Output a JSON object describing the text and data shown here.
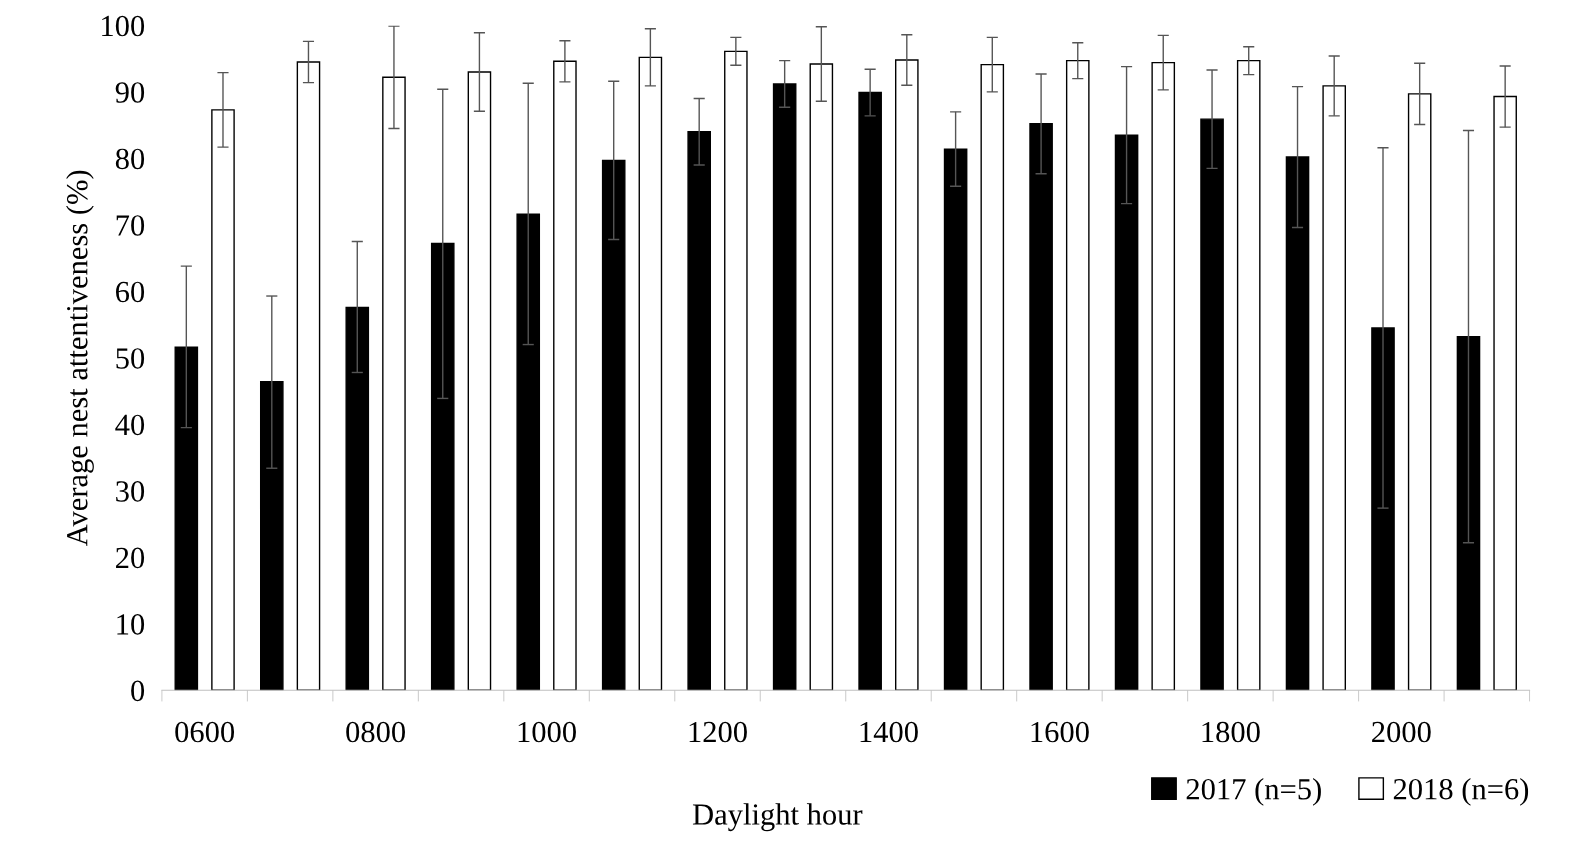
{
  "chart_data": {
    "type": "bar",
    "xlabel": "Daylight hour",
    "ylabel": "Average nest attentiveness (%)",
    "categories": [
      "0600",
      null,
      "0800",
      null,
      "1000",
      null,
      "1200",
      null,
      "1400",
      null,
      "1600",
      null,
      "1800",
      null,
      "2000",
      null
    ],
    "series": [
      {
        "name": "2017 (n=5)",
        "color": "#000000",
        "values": [
          51.6,
          46.4,
          57.6,
          67.2,
          71.6,
          79.7,
          84.0,
          91.2,
          89.9,
          81.4,
          85.2,
          83.5,
          85.9,
          80.2,
          54.5,
          53.2
        ],
        "errors": [
          [
            39.5,
            63.8
          ],
          [
            33.4,
            59.3
          ],
          [
            47.8,
            67.5
          ],
          [
            43.9,
            90.4
          ],
          [
            52.0,
            91.3
          ],
          [
            67.8,
            91.6
          ],
          [
            79.0,
            89.0
          ],
          [
            87.7,
            94.7
          ],
          [
            86.4,
            93.4
          ],
          [
            75.8,
            87.0
          ],
          [
            77.7,
            92.7
          ],
          [
            73.2,
            93.8
          ],
          [
            78.5,
            93.3
          ],
          [
            69.6,
            90.8
          ],
          [
            27.4,
            81.6
          ],
          [
            22.2,
            84.2
          ]
        ]
      },
      {
        "name": "2018 (n=6)",
        "color": "#ffffff",
        "values": [
          87.3,
          94.5,
          92.2,
          93.0,
          94.6,
          95.2,
          96.1,
          94.2,
          94.8,
          94.1,
          94.7,
          94.4,
          94.7,
          90.9,
          89.7,
          89.3
        ],
        "errors": [
          [
            81.7,
            92.9
          ],
          [
            91.4,
            97.6
          ],
          [
            84.5,
            99.9
          ],
          [
            87.1,
            98.9
          ],
          [
            91.5,
            97.7
          ],
          [
            90.9,
            99.5
          ],
          [
            94.0,
            98.2
          ],
          [
            88.6,
            99.8
          ],
          [
            91.0,
            98.6
          ],
          [
            90.0,
            98.2
          ],
          [
            92.0,
            97.4
          ],
          [
            90.3,
            98.5
          ],
          [
            92.6,
            96.8
          ],
          [
            86.4,
            95.4
          ],
          [
            85.1,
            94.3
          ],
          [
            84.7,
            93.9
          ]
        ]
      }
    ],
    "ylim": [
      0,
      100
    ],
    "yticks": [
      0,
      10,
      20,
      30,
      40,
      50,
      60,
      70,
      80,
      90,
      100
    ],
    "grid": false,
    "legend": "bottom right"
  }
}
